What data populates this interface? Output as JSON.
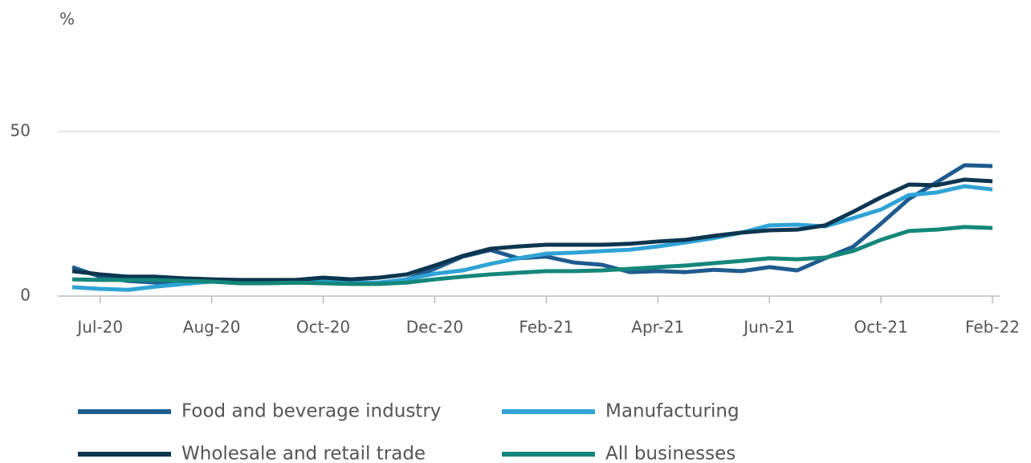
{
  "chart_data": {
    "type": "line",
    "y_label": "%",
    "categories": [
      null,
      "Jul-20",
      null,
      null,
      null,
      "Aug-20",
      null,
      null,
      null,
      "Oct-20",
      null,
      null,
      null,
      "Dec-20",
      null,
      null,
      null,
      "Feb-21",
      null,
      null,
      null,
      "Apr-21",
      null,
      null,
      null,
      "Jun-21",
      null,
      null,
      null,
      "Oct-21",
      null,
      null,
      null,
      "Feb-22"
    ],
    "ylim": [
      0,
      50
    ],
    "yticks": [
      0,
      50
    ],
    "grid": true,
    "series": [
      {
        "name": "Food and beverage industry",
        "color": "#1f5b8e",
        "values": [
          8.8,
          5.9,
          4.6,
          4.1,
          4.6,
          4.6,
          4.1,
          4.1,
          4.1,
          4.4,
          3.9,
          4.1,
          5.1,
          8.3,
          12,
          14,
          11.5,
          12,
          10.2,
          9.5,
          7.3,
          7.6,
          7.3,
          8,
          7.6,
          8.8,
          7.8,
          11.5,
          15,
          22,
          29.5,
          34.6,
          39.8,
          39.5
        ]
      },
      {
        "name": "Manufacturing",
        "color": "#2fa3d6",
        "values": [
          2.7,
          2.2,
          1.9,
          2.9,
          3.7,
          4.4,
          4.6,
          4.6,
          4.4,
          4.6,
          4.1,
          4.1,
          5.1,
          6.8,
          7.8,
          9.8,
          11.5,
          12.9,
          13.2,
          13.7,
          14.1,
          15.1,
          16.3,
          17.6,
          19.3,
          21.5,
          21.7,
          21.2,
          23.7,
          26.3,
          30.7,
          31.5,
          33.4,
          32.4
        ]
      },
      {
        "name": "Wholesale and retail trade",
        "color": "#0c3550",
        "values": [
          7.6,
          6.6,
          5.9,
          5.9,
          5.4,
          5.1,
          4.9,
          4.9,
          4.9,
          5.6,
          5.1,
          5.6,
          6.6,
          9.3,
          12.2,
          14.4,
          15.1,
          15.6,
          15.6,
          15.6,
          15.9,
          16.6,
          17.1,
          18.3,
          19.3,
          20,
          20.2,
          21.5,
          25.6,
          30,
          33.9,
          33.7,
          35.4,
          34.9
        ]
      },
      {
        "name": "All businesses",
        "color": "#14877a",
        "values": [
          5.1,
          4.9,
          4.9,
          4.9,
          4.6,
          4.4,
          3.9,
          3.9,
          4.1,
          3.9,
          3.7,
          3.7,
          4.1,
          5.1,
          5.9,
          6.6,
          7.1,
          7.6,
          7.6,
          7.8,
          8.3,
          8.8,
          9.3,
          10,
          10.7,
          11.5,
          11.2,
          11.7,
          13.7,
          17.1,
          19.8,
          20.2,
          21,
          20.7
        ]
      }
    ]
  }
}
